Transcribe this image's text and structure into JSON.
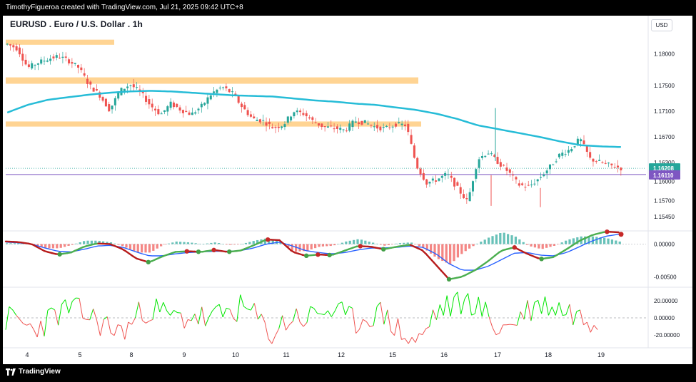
{
  "header": {
    "credit": "TimothyFigueroa created with TradingView.com, Jul 21, 2025 09:42 UTC+8"
  },
  "footer": {
    "brand": "TradingView"
  },
  "chart_title": "EURUSD . Euro / U.S. Dollar . 1h",
  "currency": "USD",
  "colors": {
    "up": "#26a69a",
    "down": "#ef5350",
    "ema": "#26bcd7",
    "zone": "#ffcc80",
    "lastPrice": "#26a69a",
    "hline": "#7e57c2",
    "macdSlow": "#2962ff",
    "macdRed": "#b71c1c",
    "macdGreen": "#4caf50",
    "oscGreen": "#00e600",
    "oscRed": "#ef5350"
  },
  "chart_data": [
    {
      "type": "candlestick",
      "title": "EURUSD . Euro / U.S. Dollar . 1h",
      "x_labels": [
        "4",
        "5",
        "8",
        "9",
        "10",
        "11",
        "12",
        "15",
        "16",
        "17",
        "18",
        "19"
      ],
      "y_ticks": [
        "1.18000",
        "1.17500",
        "1.17100",
        "1.16700",
        "1.16300",
        "1.16000",
        "1.15700",
        "1.15450"
      ],
      "y_range": [
        1.1525,
        1.1835
      ],
      "last_price": "1.16208",
      "horizontal_line": "1.16110",
      "price_path": [
        1.1815,
        1.1808,
        1.1778,
        1.1786,
        1.1792,
        1.1796,
        1.1789,
        1.1778,
        1.1751,
        1.1736,
        1.1712,
        1.1742,
        1.1752,
        1.174,
        1.1719,
        1.1705,
        1.1722,
        1.1712,
        1.1705,
        1.1718,
        1.1738,
        1.1748,
        1.1738,
        1.1716,
        1.1698,
        1.1695,
        1.1684,
        1.1689,
        1.171,
        1.1706,
        1.1693,
        1.1685,
        1.1684,
        1.168,
        1.1695,
        1.1692,
        1.1685,
        1.1683,
        1.169,
        1.1688,
        1.1625,
        1.1598,
        1.1603,
        1.1612,
        1.159,
        1.1568,
        1.1635,
        1.1646,
        1.163,
        1.1615,
        1.1595,
        1.1592,
        1.1605,
        1.1622,
        1.1642,
        1.165,
        1.1667,
        1.1635,
        1.163,
        1.1625,
        1.1621
      ],
      "ema_path": [
        1.1708,
        1.172,
        1.1728,
        1.1732,
        1.1736,
        1.1739,
        1.1741,
        1.1742,
        1.1741,
        1.1739,
        1.1737,
        1.1735,
        1.1734,
        1.1733,
        1.173,
        1.1727,
        1.1725,
        1.1722,
        1.172,
        1.1716,
        1.1712,
        1.1706,
        1.1698,
        1.1688,
        1.1682,
        1.1676,
        1.167,
        1.1663,
        1.1657,
        1.1655,
        1.1654
      ],
      "zones": [
        {
          "from": 1.1822,
          "to": 1.1814,
          "start": "4",
          "end": "8"
        },
        {
          "from": 1.1763,
          "to": 1.1753,
          "start": "4",
          "end": "15 late"
        },
        {
          "from": 1.1694,
          "to": 1.1686,
          "start": "4",
          "end": "16"
        }
      ]
    },
    {
      "type": "line",
      "title": "MACD",
      "y_ticks": [
        "0.00000",
        "-0.00500"
      ],
      "y_range": [
        -0.0065,
        0.0018
      ],
      "fast": [
        0.0004,
        0.0003,
        0.0,
        -0.0011,
        -0.0016,
        -0.0013,
        -0.0004,
        0.0001,
        0.0,
        -0.0008,
        -0.0022,
        -0.0028,
        -0.0019,
        -0.0012,
        -0.0011,
        -0.0012,
        -0.0009,
        -0.0012,
        -0.001,
        -0.0002,
        0.0007,
        0.0006,
        -0.0012,
        -0.0018,
        -0.0016,
        -0.0017,
        -0.001,
        -0.0003,
        -0.0004,
        -0.0008,
        -0.0004,
        -0.0001,
        -0.001,
        -0.0032,
        -0.0054,
        -0.005,
        -0.004,
        -0.0026,
        -0.001,
        -0.0005,
        -0.0015,
        -0.0023,
        -0.002,
        -0.0008,
        0.0005,
        0.0014,
        0.0019,
        0.0018
      ],
      "slow": [
        0.0003,
        0.0002,
        0.0,
        -0.0006,
        -0.0011,
        -0.0012,
        -0.0008,
        -0.0003,
        -0.0002,
        -0.0005,
        -0.0012,
        -0.0018,
        -0.0018,
        -0.0015,
        -0.0013,
        -0.0012,
        -0.0011,
        -0.0011,
        -0.001,
        -0.0006,
        0.0,
        0.0003,
        -0.0003,
        -0.001,
        -0.0013,
        -0.0015,
        -0.0013,
        -0.0009,
        -0.0006,
        -0.0006,
        -0.0005,
        -0.0003,
        -0.0005,
        -0.0015,
        -0.003,
        -0.004,
        -0.004,
        -0.0034,
        -0.0024,
        -0.0014,
        -0.0013,
        -0.0017,
        -0.0018,
        -0.0013,
        -0.0004,
        0.0005,
        0.0012,
        0.0015
      ]
    },
    {
      "type": "line",
      "title": "Oscillator",
      "y_ticks": [
        "20.00000",
        "0.00000",
        "-20.00000"
      ],
      "y_range": [
        -34,
        34
      ],
      "zero_line": 0
    }
  ]
}
